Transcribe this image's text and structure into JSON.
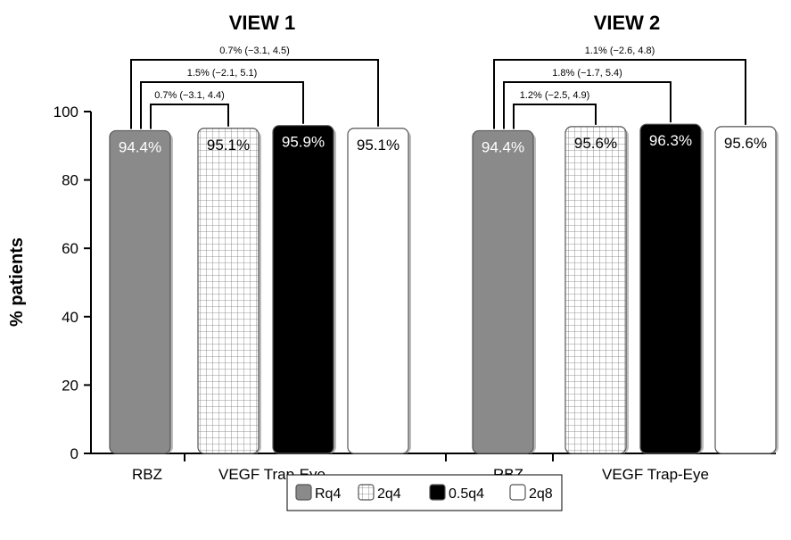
{
  "chart_data": {
    "type": "bar",
    "ylabel": "% patients",
    "ylim": [
      0,
      100
    ],
    "yticks": [
      0,
      20,
      40,
      60,
      80,
      100
    ],
    "grid": false,
    "legend_placement": "bottom-center",
    "series": [
      {
        "name": "Rq4",
        "pattern": "solid-gray",
        "color": "#8a8a8a"
      },
      {
        "name": "2q4",
        "pattern": "grid",
        "color": "#ffffff"
      },
      {
        "name": "0.5q4",
        "pattern": "solid-black",
        "color": "#000000"
      },
      {
        "name": "2q8",
        "pattern": "solid-white",
        "color": "#ffffff"
      }
    ],
    "panels": [
      {
        "title": "VIEW 1",
        "groups": [
          {
            "label": "RBZ",
            "series_count": 1
          },
          {
            "label": "VEGF Trap-Eye",
            "series_count": 3
          }
        ],
        "values": [
          94.4,
          95.1,
          95.9,
          95.1
        ],
        "value_labels": [
          "94.4%",
          "95.1%",
          "95.9%",
          "95.1%"
        ],
        "comparisons": [
          {
            "from": 0,
            "to": 3,
            "label": "0.7% (−3.1, 4.5)"
          },
          {
            "from": 0,
            "to": 2,
            "label": "1.5% (−2.1, 5.1)"
          },
          {
            "from": 0,
            "to": 1,
            "label": "0.7% (−3.1, 4.4)"
          }
        ]
      },
      {
        "title": "VIEW 2",
        "groups": [
          {
            "label": "RBZ",
            "series_count": 1
          },
          {
            "label": "VEGF Trap-Eye",
            "series_count": 3
          }
        ],
        "values": [
          94.4,
          95.6,
          96.3,
          95.6
        ],
        "value_labels": [
          "94.4%",
          "95.6%",
          "96.3%",
          "95.6%"
        ],
        "comparisons": [
          {
            "from": 0,
            "to": 3,
            "label": "1.1% (−2.6, 4.8)"
          },
          {
            "from": 0,
            "to": 2,
            "label": "1.8% (−1.7, 5.4)"
          },
          {
            "from": 0,
            "to": 1,
            "label": "1.2% (−2.5, 4.9)"
          }
        ]
      }
    ]
  }
}
